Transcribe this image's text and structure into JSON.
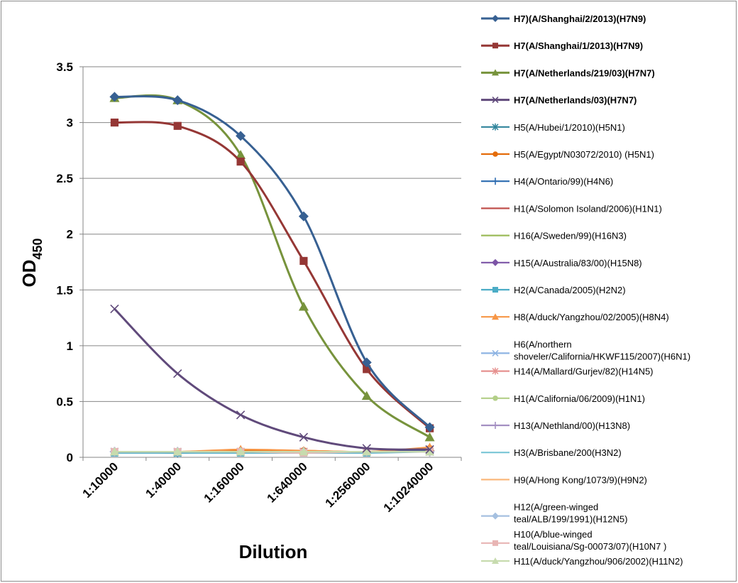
{
  "chart_data": {
    "type": "line",
    "title": "",
    "xlabel": "Dilution",
    "ylabel": "OD",
    "ylabel_sub": "450",
    "categories": [
      "1:10000",
      "1:40000",
      "1:160000",
      "1:640000",
      "1:2560000",
      "1:10240000"
    ],
    "ylim": [
      0,
      3.5
    ],
    "yticks": [
      "0",
      "0.5",
      "1",
      "1.5",
      "2",
      "2.5",
      "3",
      "3.5"
    ],
    "grid": true,
    "legend_position": "right",
    "series": [
      {
        "name": "H7)(A/Shanghai/2/2013)(H7N9)",
        "bold": true,
        "color": "#376092",
        "marker": "diamond",
        "values": [
          3.23,
          3.2,
          2.88,
          2.16,
          0.85,
          0.27
        ]
      },
      {
        "name": "H7(A/Shanghai/1/2013)(H7N9)",
        "bold": true,
        "color": "#953735",
        "marker": "square",
        "values": [
          3.0,
          2.97,
          2.65,
          1.76,
          0.79,
          0.26
        ]
      },
      {
        "name": "H7(A/Netherlands/219/03)(H7N7)",
        "bold": true,
        "color": "#77933c",
        "marker": "triangle",
        "values": [
          3.22,
          3.2,
          2.71,
          1.35,
          0.55,
          0.18
        ]
      },
      {
        "name": "H7(A/Netherlands/03)(H7N7)",
        "bold": true,
        "color": "#604a7b",
        "marker": "x",
        "values": [
          1.33,
          0.75,
          0.38,
          0.18,
          0.08,
          0.07
        ]
      },
      {
        "name": "H5(A/Hubei/1/2010)(H5N1)",
        "bold": false,
        "color": "#31859c",
        "marker": "star",
        "values": [
          0.05,
          0.04,
          0.05,
          0.05,
          0.05,
          0.05
        ]
      },
      {
        "name": "H5(A/Egypt/N03072/2010) (H5N1)",
        "bold": false,
        "color": "#e46c0a",
        "marker": "circle",
        "values": [
          0.05,
          0.05,
          0.06,
          0.06,
          0.05,
          0.08
        ]
      },
      {
        "name": "H4(A/Ontario/99)(H4N6)",
        "bold": false,
        "color": "#2c6bb0",
        "marker": "plus",
        "values": [
          0.05,
          0.05,
          0.05,
          0.05,
          0.05,
          0.06
        ]
      },
      {
        "name": "H1(A/Solomon Isoland/2006)(H1N1)",
        "bold": false,
        "color": "#c0504d",
        "marker": "none",
        "values": [
          0.05,
          0.05,
          0.05,
          0.05,
          0.05,
          0.05
        ]
      },
      {
        "name": "H16(A/Sweden/99)(H16N3)",
        "bold": false,
        "color": "#9bbb59",
        "marker": "none",
        "values": [
          0.05,
          0.05,
          0.05,
          0.05,
          0.05,
          0.05
        ]
      },
      {
        "name": "H15(A/Australia/83/00)(H15N8)",
        "bold": false,
        "color": "#7c54a6",
        "marker": "diamond",
        "values": [
          0.05,
          0.05,
          0.05,
          0.05,
          0.05,
          0.05
        ]
      },
      {
        "name": "H2(A/Canada/2005)(H2N2)",
        "bold": false,
        "color": "#4bacc6",
        "marker": "square",
        "values": [
          0.04,
          0.04,
          0.04,
          0.04,
          0.04,
          0.05
        ]
      },
      {
        "name": "H8(A/duck/Yangzhou/02/2005)(H8N4)",
        "bold": false,
        "color": "#f79646",
        "marker": "triangle",
        "values": [
          0.05,
          0.05,
          0.07,
          0.06,
          0.05,
          0.09
        ]
      },
      {
        "name": "H6(A/northern shoveler/California/HKWF115/2007)(H6N1)",
        "bold": false,
        "color": "#8eb4e3",
        "marker": "x",
        "values": [
          0.05,
          0.05,
          0.05,
          0.05,
          0.05,
          0.05
        ]
      },
      {
        "name": "H14(A/Mallard/Gurjev/82)(H14N5)",
        "bold": false,
        "color": "#e6918f",
        "marker": "star",
        "values": [
          0.05,
          0.05,
          0.05,
          0.05,
          0.05,
          0.05
        ]
      },
      {
        "name": "H1(A/California/06/2009)(H1N1)",
        "bold": false,
        "color": "#b3cf88",
        "marker": "circle",
        "values": [
          0.05,
          0.05,
          0.05,
          0.05,
          0.05,
          0.05
        ]
      },
      {
        "name": "H13(A/Nethland/00)(H13N8)",
        "bold": false,
        "color": "#a48fc2",
        "marker": "plus",
        "values": [
          0.05,
          0.05,
          0.05,
          0.05,
          0.05,
          0.05
        ]
      },
      {
        "name": "H3(A/Brisbane/200(H3N2)",
        "bold": false,
        "color": "#79c6d6",
        "marker": "none",
        "values": [
          0.05,
          0.05,
          0.05,
          0.05,
          0.05,
          0.05
        ]
      },
      {
        "name": "H9(A/Hong Kong/1073/9)(H9N2)",
        "bold": false,
        "color": "#fab87c",
        "marker": "none",
        "values": [
          0.05,
          0.05,
          0.05,
          0.05,
          0.05,
          0.05
        ]
      },
      {
        "name": "H12(A/green-winged teal/ALB/199/1991)(H12N5)",
        "bold": false,
        "color": "#a5c0e0",
        "marker": "diamond",
        "values": [
          0.05,
          0.05,
          0.05,
          0.05,
          0.05,
          0.05
        ]
      },
      {
        "name": "H10(A/blue-winged teal/Louisiana/Sg-00073/07)(H10N7 )",
        "bold": false,
        "color": "#e8b5b4",
        "marker": "square",
        "values": [
          0.05,
          0.05,
          0.05,
          0.04,
          0.05,
          0.05
        ]
      },
      {
        "name": "H11(A/duck/Yangzhou/906/2002)(H11N2)",
        "bold": false,
        "color": "#c7dbae",
        "marker": "triangle",
        "values": [
          0.05,
          0.05,
          0.05,
          0.05,
          0.05,
          0.05
        ]
      }
    ]
  }
}
